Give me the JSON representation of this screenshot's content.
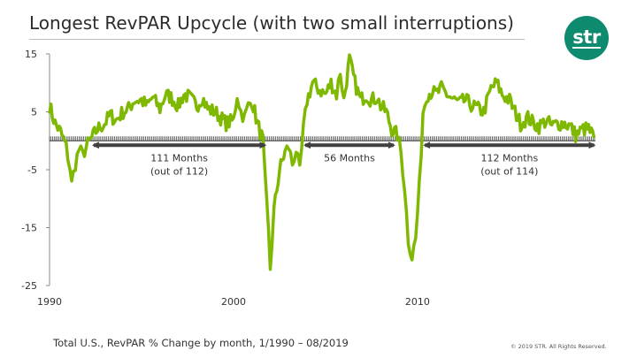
{
  "header": {
    "title": "Longest RevPAR Upcycle (with two small interruptions)",
    "logo_text": "str"
  },
  "footer": {
    "note": "Total U.S., RevPAR % Change by month,  1/1990 – 08/2019",
    "copyright": "© 2019 STR. All Rights Reserved."
  },
  "colors": {
    "series": "#7fb800",
    "arrow": "#404040",
    "logo": "#0e8a6f",
    "zero_line": "#333333"
  },
  "chart_data": {
    "type": "line",
    "title": "Longest RevPAR Upcycle (with two small interruptions)",
    "xlabel": "",
    "ylabel": "",
    "xlim": [
      1990,
      2019.67
    ],
    "ylim": [
      -25,
      15
    ],
    "yticks": [
      15,
      5,
      -5,
      -15,
      -25
    ],
    "xticks": [
      1990,
      2000,
      2010
    ],
    "series": [
      {
        "name": "Total U.S. RevPAR % Change",
        "x": [
          1990.0,
          1990.3,
          1990.6,
          1990.9,
          1991.1,
          1991.2,
          1991.4,
          1991.6,
          1991.8,
          1992.0,
          1992.3,
          1992.6,
          1993.0,
          1993.3,
          1993.6,
          1994.0,
          1994.3,
          1994.6,
          1995.0,
          1995.3,
          1995.6,
          1996.0,
          1996.3,
          1996.6,
          1997.0,
          1997.3,
          1997.6,
          1998.0,
          1998.3,
          1998.6,
          1999.0,
          1999.3,
          1999.6,
          2000.0,
          2000.2,
          2000.4,
          2000.6,
          2000.8,
          2001.0,
          2001.3,
          2001.6,
          2001.7,
          2001.9,
          2002.0,
          2002.2,
          2002.5,
          2002.8,
          2003.0,
          2003.2,
          2003.4,
          2003.6,
          2003.8,
          2004.0,
          2004.3,
          2004.6,
          2005.0,
          2005.3,
          2005.6,
          2005.8,
          2006.0,
          2006.3,
          2006.6,
          2006.9,
          2007.2,
          2007.5,
          2007.8,
          2008.0,
          2008.3,
          2008.6,
          2008.9,
          2009.1,
          2009.3,
          2009.5,
          2009.7,
          2009.9,
          2010.1,
          2010.3,
          2010.5,
          2010.8,
          2011.0,
          2011.3,
          2011.6,
          2012.0,
          2012.3,
          2012.6,
          2013.0,
          2013.3,
          2013.6,
          2014.0,
          2014.3,
          2014.6,
          2015.0,
          2015.3,
          2015.6,
          2016.0,
          2016.3,
          2016.6,
          2017.0,
          2017.3,
          2017.6,
          2018.0,
          2018.3,
          2018.6,
          2019.0,
          2019.3,
          2019.6
        ],
        "y": [
          6,
          3,
          1.5,
          -1,
          -4.5,
          -7.5,
          -4,
          -1.5,
          -2.5,
          -1,
          0.5,
          2,
          3,
          4.5,
          3.5,
          5,
          5.5,
          7,
          7,
          6,
          7.5,
          5.5,
          8,
          7.5,
          6,
          8,
          7.5,
          6,
          7.5,
          5.5,
          5,
          4,
          3,
          3.5,
          8,
          5,
          4,
          6,
          7,
          3,
          0,
          -6,
          -16,
          -22,
          -12,
          -5,
          -2,
          -1,
          -4,
          -1.5,
          -5.5,
          2,
          7,
          10,
          9,
          8,
          10,
          8,
          12,
          7,
          14,
          10,
          7,
          8,
          7,
          7.5,
          6,
          5,
          2,
          1,
          -2,
          -8,
          -17,
          -20,
          -17,
          -8,
          5,
          8,
          8.5,
          8,
          9,
          8,
          7,
          6.5,
          7,
          6,
          5.5,
          5,
          9,
          10,
          8,
          7,
          5,
          3,
          4,
          3,
          2.5,
          3.5,
          2.5,
          3,
          3,
          2.5,
          1,
          2,
          2,
          0.5
        ]
      }
    ],
    "annotations": [
      {
        "label_line1": "111 Months",
        "label_line2": "(out of 112)",
        "x_start": 1992.4,
        "x_end": 2001.7
      },
      {
        "label_line1": "56 Months",
        "label_line2": "",
        "x_start": 2003.9,
        "x_end": 2008.7
      },
      {
        "label_line1": "112 Months",
        "label_line2": "(out of 114)",
        "x_start": 2010.4,
        "x_end": 2019.6
      }
    ]
  }
}
